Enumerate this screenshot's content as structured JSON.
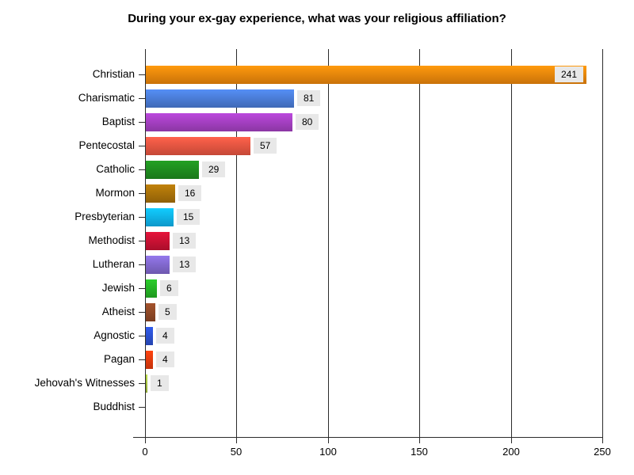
{
  "chart_data": {
    "type": "bar",
    "orientation": "horizontal",
    "title": "During your ex-gay experience, what was your religious affiliation?",
    "categories": [
      "Christian",
      "Charismatic",
      "Baptist",
      "Pentecostal",
      "Catholic",
      "Mormon",
      "Presbyterian",
      "Methodist",
      "Lutheran",
      "Jewish",
      "Atheist",
      "Agnostic",
      "Pagan",
      "Jehovah's Witnesses",
      "Buddhist"
    ],
    "values": [
      241,
      81,
      80,
      57,
      29,
      16,
      15,
      13,
      13,
      6,
      5,
      4,
      4,
      1,
      0
    ],
    "bar_colors": [
      "#ED860B",
      "#4A7CD6",
      "#A33FC0",
      "#E85541",
      "#1E8C1E",
      "#A87109",
      "#0FB2EC",
      "#C81133",
      "#8168CD",
      "#25B325",
      "#8F4826",
      "#2B50CE",
      "#E63B0D",
      "#A3C13C",
      "#CCCCCC"
    ],
    "xlabel": "",
    "ylabel": "",
    "x_ticks": [
      0,
      50,
      100,
      150,
      200,
      250
    ],
    "xlim": [
      0,
      250
    ],
    "grid": "vertical-gridlines",
    "legend": "none",
    "value_label_bg": "#E8E8E8",
    "axis_color": "#2B2B2B",
    "text_color": "#000000",
    "background": "#FFFFFF"
  }
}
